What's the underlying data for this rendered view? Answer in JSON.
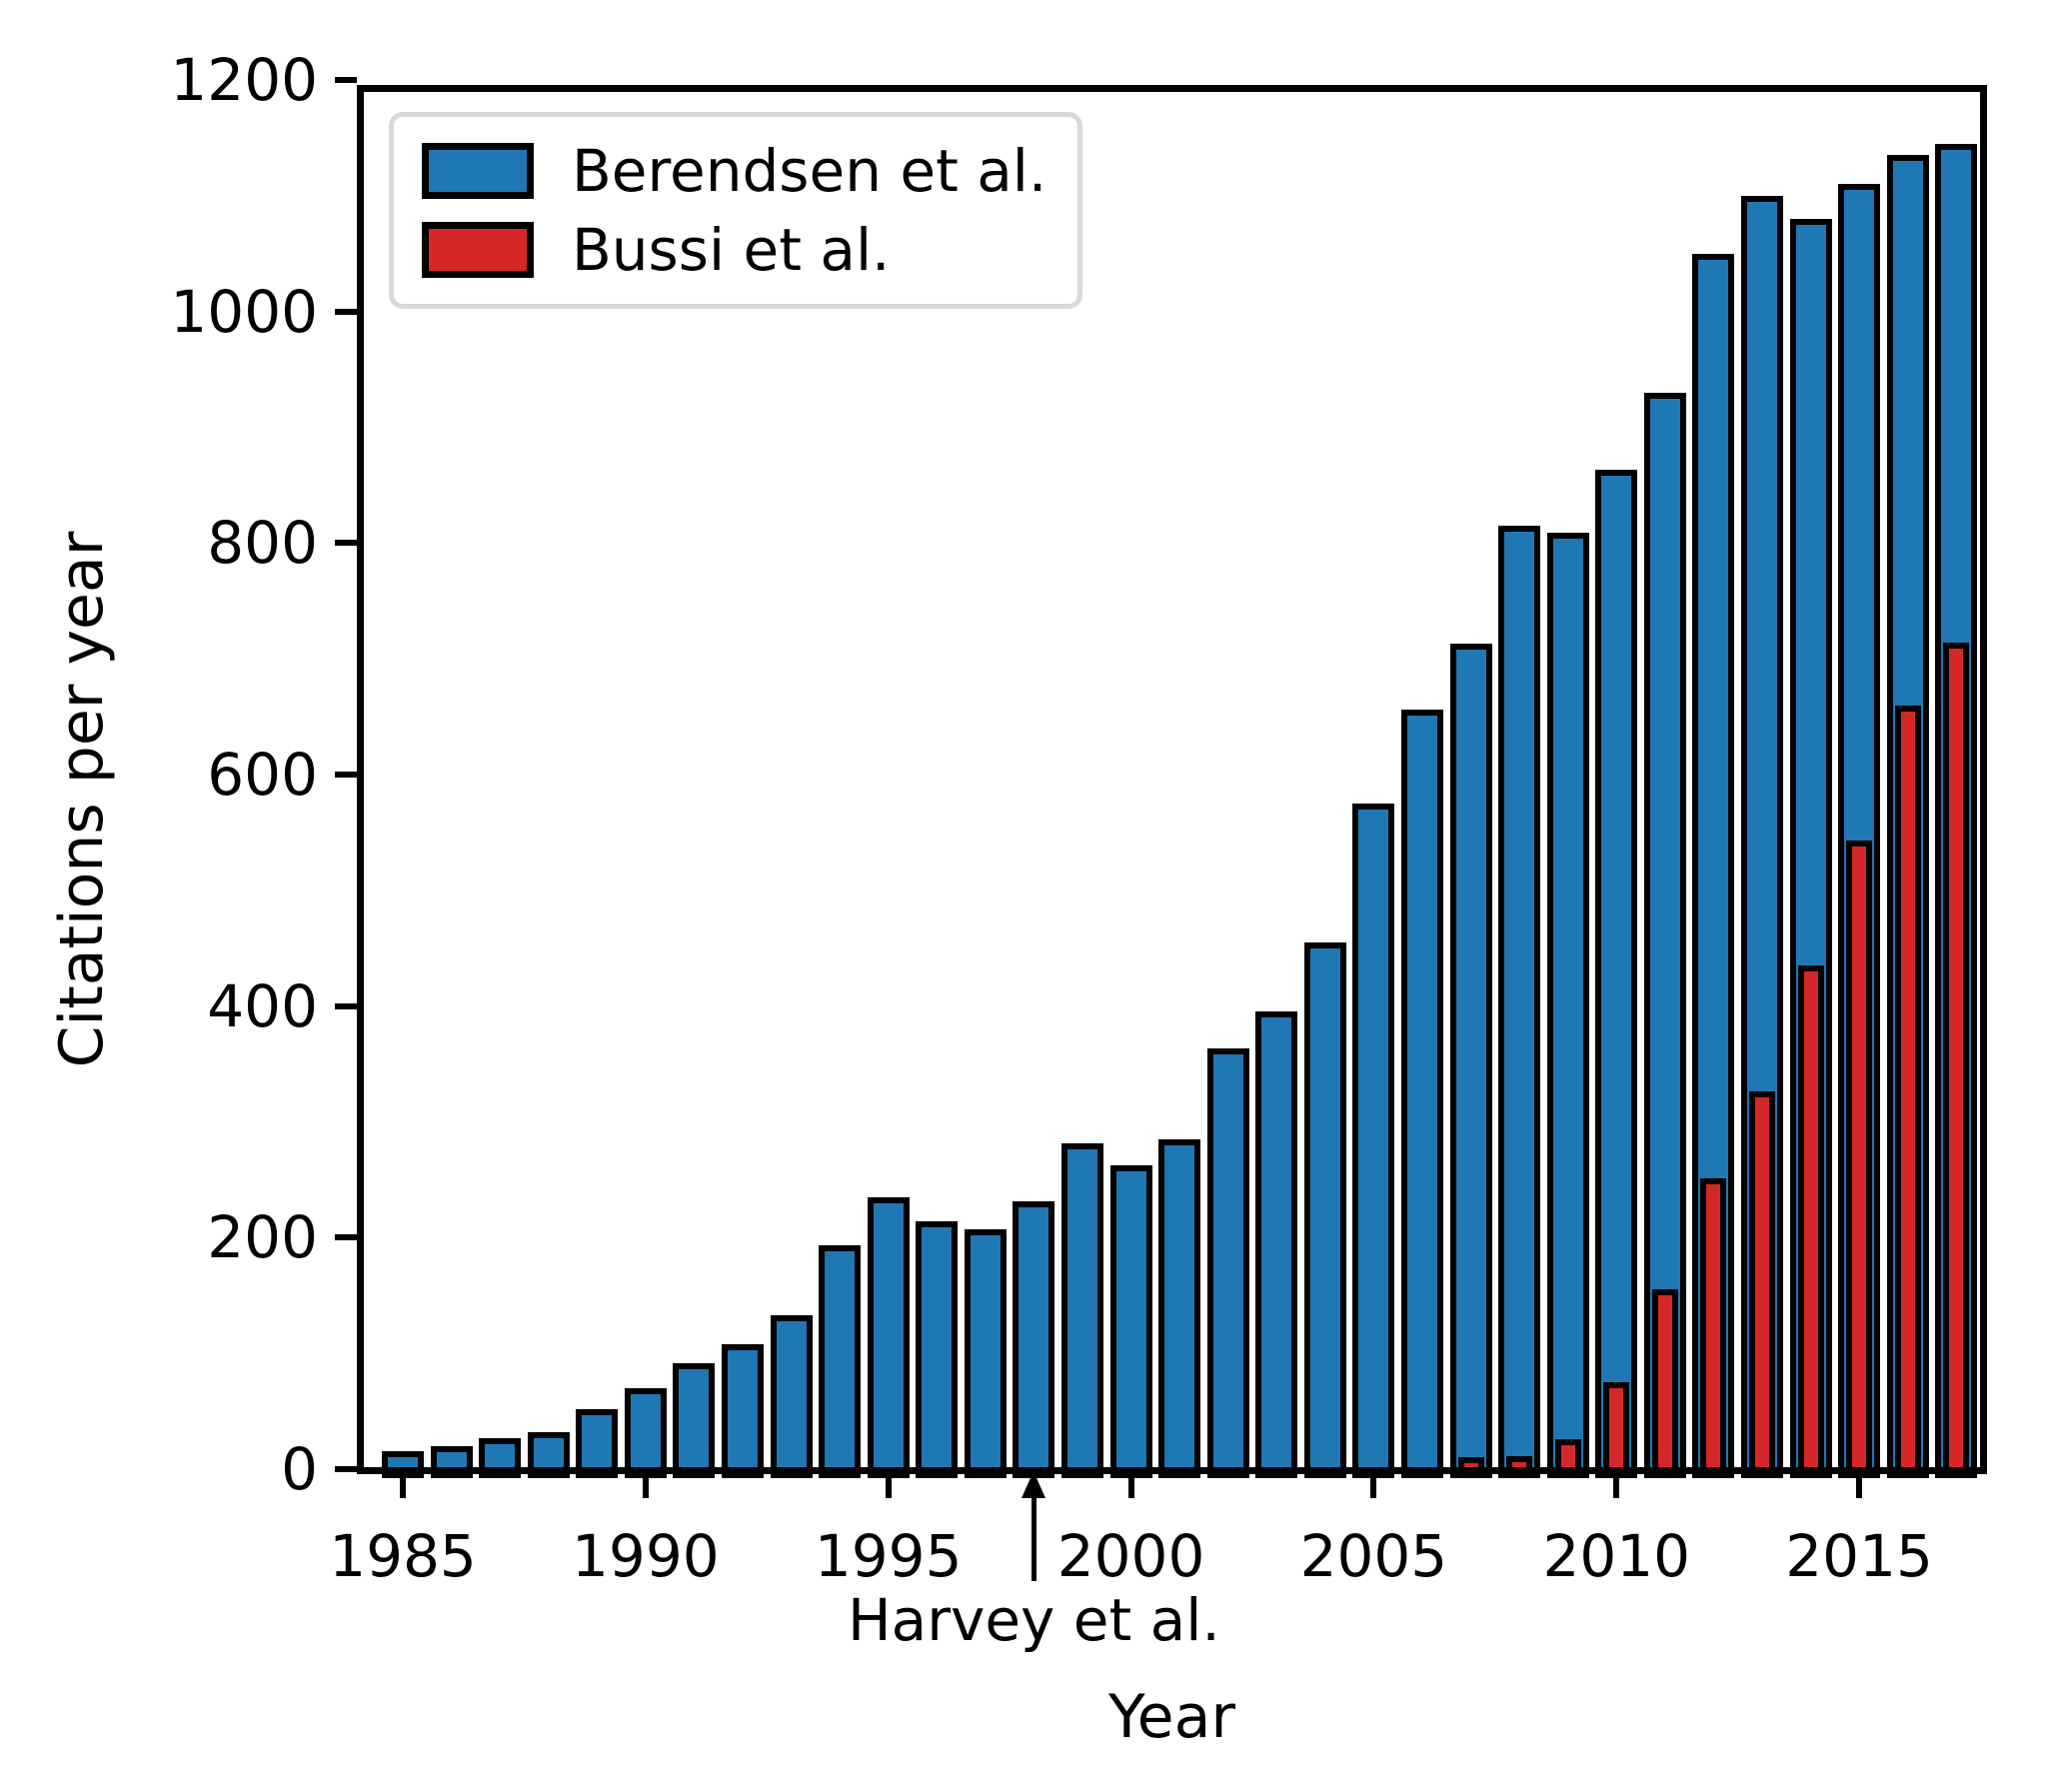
{
  "figure": {
    "background": "#ffffff"
  },
  "chart_data": {
    "type": "bar",
    "title": "",
    "xlabel": "Year",
    "ylabel": "Citations per year",
    "x": [
      1985,
      1986,
      1987,
      1988,
      1989,
      1990,
      1991,
      1992,
      1993,
      1994,
      1995,
      1996,
      1997,
      1998,
      1999,
      2000,
      2001,
      2002,
      2003,
      2004,
      2005,
      2006,
      2007,
      2008,
      2009,
      2010,
      2011,
      2012,
      2013,
      2014,
      2015,
      2016,
      2017
    ],
    "series": [
      {
        "name": "Berendsen et al.",
        "color": "#1f77b4",
        "edge_color": "#000000",
        "values": [
          10,
          15,
          22,
          27,
          47,
          65,
          86,
          103,
          128,
          188,
          230,
          209,
          202,
          226,
          276,
          257,
          280,
          358,
          390,
          450,
          570,
          651,
          708,
          810,
          804,
          858,
          925,
          1045,
          1095,
          1075,
          1105,
          1130,
          1140
        ]
      },
      {
        "name": "Bussi et al.",
        "color": "#d62728",
        "edge_color": "#000000",
        "values": [
          null,
          null,
          null,
          null,
          null,
          null,
          null,
          null,
          null,
          null,
          null,
          null,
          null,
          null,
          null,
          null,
          null,
          null,
          null,
          null,
          null,
          null,
          5,
          6,
          21,
          70,
          150,
          246,
          321,
          430,
          538,
          654,
          709
        ]
      }
    ],
    "ylim": [
      0,
      1200
    ],
    "ytick_values": [
      0,
      200,
      400,
      600,
      800,
      1000,
      1200
    ],
    "ytick_labels": [
      "0",
      "200",
      "400",
      "600",
      "800",
      "1000",
      "1200"
    ],
    "xtick_values": [
      1985,
      1990,
      1995,
      2000,
      2005,
      2010,
      2015
    ],
    "xtick_labels": [
      "1985",
      "1990",
      "1995",
      "2000",
      "2005",
      "2010",
      "2015"
    ],
    "grid": false,
    "legend_position": "upper-left",
    "annotation": {
      "text": "Harvey et al.",
      "year": 1998
    }
  }
}
